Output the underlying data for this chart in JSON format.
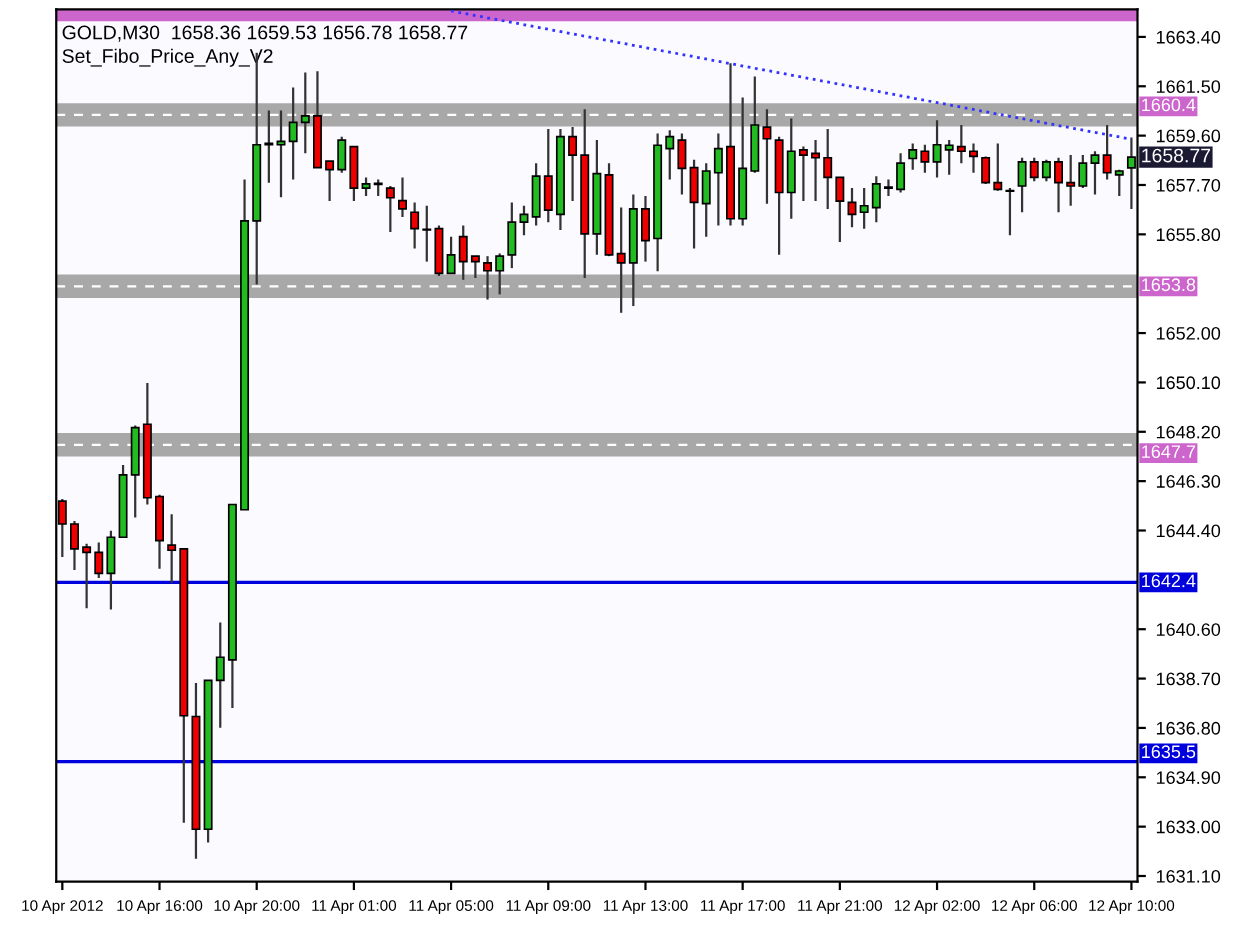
{
  "chart_data": {
    "type": "candlestick",
    "title": "GOLD,M30  1658.36 1659.53 1656.78 1658.77",
    "subtitle": "Set_Fibo_Price_Any_V2",
    "categories": [
      "10 Apr 2012",
      null,
      null,
      null,
      null,
      null,
      null,
      null,
      "10 Apr 16:00",
      null,
      null,
      null,
      null,
      null,
      null,
      null,
      "10 Apr 20:00",
      null,
      null,
      null,
      null,
      null,
      null,
      null,
      "11 Apr 01:00",
      null,
      null,
      null,
      null,
      null,
      null,
      null,
      "11 Apr 05:00",
      null,
      null,
      null,
      null,
      null,
      null,
      null,
      "11 Apr 09:00",
      null,
      null,
      null,
      null,
      null,
      null,
      null,
      "11 Apr 13:00",
      null,
      null,
      null,
      null,
      null,
      null,
      null,
      "11 Apr 17:00",
      null,
      null,
      null,
      null,
      null,
      null,
      null,
      "11 Apr 21:00",
      null,
      null,
      null,
      null,
      null,
      null,
      null,
      "12 Apr 02:00",
      null,
      null,
      null,
      null,
      null,
      null,
      null,
      "12 Apr 06:00",
      null,
      null,
      null,
      null,
      null,
      null,
      null,
      "12 Apr 10:00"
    ],
    "ohlc": [
      [
        1645.53,
        1645.61,
        1643.38,
        1644.65
      ],
      [
        1644.65,
        1644.77,
        1642.88,
        1643.69
      ],
      [
        1643.76,
        1643.89,
        1641.41,
        1643.56
      ],
      [
        1643.56,
        1643.94,
        1642.57,
        1642.75
      ],
      [
        1642.75,
        1644.39,
        1641.36,
        1644.14
      ],
      [
        1644.14,
        1646.92,
        1644.14,
        1646.54
      ],
      [
        1646.54,
        1648.44,
        1644.9,
        1648.36
      ],
      [
        1648.49,
        1650.08,
        1645.4,
        1645.66
      ],
      [
        1645.71,
        1645.78,
        1642.93,
        1644.01
      ],
      [
        1643.84,
        1645.03,
        1642.37,
        1643.64
      ],
      [
        1643.69,
        1643.69,
        1633.15,
        1637.27
      ],
      [
        1637.24,
        1638.53,
        1631.76,
        1632.9
      ],
      [
        1632.9,
        1638.63,
        1632.39,
        1638.63
      ],
      [
        1638.63,
        1640.86,
        1636.81,
        1639.52
      ],
      [
        1639.42,
        1645.4,
        1637.57,
        1645.4
      ],
      [
        1645.2,
        1657.91,
        1645.2,
        1656.32
      ],
      [
        1656.32,
        1662.79,
        1653.87,
        1659.25
      ],
      [
        1659.25,
        1660.57,
        1657.79,
        1659.3
      ],
      [
        1659.25,
        1660.57,
        1657.23,
        1659.38
      ],
      [
        1659.38,
        1661.45,
        1657.91,
        1660.11
      ],
      [
        1660.11,
        1662.03,
        1658.92,
        1660.36
      ],
      [
        1660.36,
        1662.08,
        1658.37,
        1658.37
      ],
      [
        1658.62,
        1658.62,
        1657.08,
        1658.29
      ],
      [
        1658.29,
        1659.56,
        1658.17,
        1659.43
      ],
      [
        1659.18,
        1659.18,
        1657.08,
        1657.58
      ],
      [
        1657.58,
        1657.99,
        1657.28,
        1657.74
      ],
      [
        1657.72,
        1657.91,
        1657.28,
        1657.76
      ],
      [
        1657.58,
        1657.66,
        1655.89,
        1657.21
      ],
      [
        1657.1,
        1657.99,
        1656.47,
        1656.78
      ],
      [
        1656.65,
        1657.03,
        1655.26,
        1656.02
      ],
      [
        1655.97,
        1656.9,
        1654.75,
        1655.99
      ],
      [
        1656.02,
        1656.14,
        1654.2,
        1654.3
      ],
      [
        1654.3,
        1655.71,
        1654.3,
        1655.01
      ],
      [
        1655.71,
        1656.14,
        1654.05,
        1654.75
      ],
      [
        1654.96,
        1654.96,
        1654.12,
        1654.75
      ],
      [
        1654.7,
        1654.96,
        1653.29,
        1654.4
      ],
      [
        1654.4,
        1655.06,
        1653.49,
        1654.96
      ],
      [
        1655.01,
        1657.03,
        1654.5,
        1656.27
      ],
      [
        1656.27,
        1656.9,
        1655.77,
        1656.57
      ],
      [
        1656.47,
        1658.54,
        1656.14,
        1658.04
      ],
      [
        1658.04,
        1659.86,
        1656.27,
        1656.73
      ],
      [
        1656.57,
        1659.86,
        1655.97,
        1659.56
      ],
      [
        1659.56,
        1659.93,
        1657.08,
        1658.85
      ],
      [
        1658.85,
        1660.62,
        1654.12,
        1655.82
      ],
      [
        1655.82,
        1659.43,
        1655.01,
        1658.14
      ],
      [
        1658.09,
        1658.54,
        1654.96,
        1655.01
      ],
      [
        1655.06,
        1656.83,
        1652.78,
        1654.7
      ],
      [
        1654.7,
        1657.33,
        1653.04,
        1656.78
      ],
      [
        1656.78,
        1657.28,
        1654.75,
        1655.56
      ],
      [
        1655.64,
        1659.68,
        1654.38,
        1659.23
      ],
      [
        1659.1,
        1659.81,
        1657.91,
        1659.56
      ],
      [
        1659.43,
        1659.68,
        1657.33,
        1658.34
      ],
      [
        1658.37,
        1658.67,
        1655.26,
        1657.03
      ],
      [
        1656.98,
        1658.54,
        1655.71,
        1658.24
      ],
      [
        1658.17,
        1659.68,
        1656.14,
        1659.1
      ],
      [
        1659.18,
        1662.39,
        1656.14,
        1656.4
      ],
      [
        1656.4,
        1661.07,
        1656.14,
        1658.34
      ],
      [
        1658.24,
        1661.88,
        1658.17,
        1660.01
      ],
      [
        1659.93,
        1660.62,
        1656.98,
        1659.48
      ],
      [
        1659.43,
        1659.56,
        1655.01,
        1657.41
      ],
      [
        1657.41,
        1660.26,
        1656.4,
        1659.0
      ],
      [
        1659.05,
        1659.18,
        1657.08,
        1658.85
      ],
      [
        1658.92,
        1659.43,
        1657.08,
        1658.75
      ],
      [
        1658.75,
        1659.86,
        1656.78,
        1657.99
      ],
      [
        1657.99,
        1657.99,
        1655.51,
        1657.08
      ],
      [
        1657.03,
        1657.58,
        1656.07,
        1656.57
      ],
      [
        1656.65,
        1657.58,
        1656.02,
        1656.9
      ],
      [
        1656.83,
        1658.04,
        1656.27,
        1657.74
      ],
      [
        1657.58,
        1657.91,
        1657.28,
        1657.62
      ],
      [
        1657.53,
        1658.92,
        1657.41,
        1658.54
      ],
      [
        1658.72,
        1659.3,
        1658.29,
        1659.05
      ],
      [
        1659.0,
        1659.25,
        1658.17,
        1658.59
      ],
      [
        1658.59,
        1660.19,
        1657.99,
        1659.25
      ],
      [
        1659.05,
        1659.43,
        1658.09,
        1659.23
      ],
      [
        1659.18,
        1660.01,
        1658.54,
        1659.0
      ],
      [
        1659.0,
        1659.3,
        1658.17,
        1658.8
      ],
      [
        1658.75,
        1658.8,
        1657.74,
        1657.79
      ],
      [
        1657.79,
        1659.3,
        1657.48,
        1657.53
      ],
      [
        1657.48,
        1657.58,
        1655.77,
        1657.46
      ],
      [
        1657.66,
        1658.75,
        1656.65,
        1658.59
      ],
      [
        1658.59,
        1658.75,
        1657.84,
        1657.99
      ],
      [
        1657.99,
        1658.67,
        1657.84,
        1658.59
      ],
      [
        1658.59,
        1658.75,
        1656.65,
        1657.79
      ],
      [
        1657.79,
        1658.85,
        1656.9,
        1657.66
      ],
      [
        1657.66,
        1658.85,
        1657.58,
        1658.54
      ],
      [
        1658.54,
        1659.0,
        1657.33,
        1658.85
      ],
      [
        1658.85,
        1660.01,
        1657.91,
        1658.17
      ],
      [
        1658.09,
        1658.29,
        1657.28,
        1658.24
      ],
      [
        1658.36,
        1659.53,
        1656.78,
        1658.77
      ]
    ],
    "series": [
      {
        "type": "line",
        "x": [
          "11 Apr 05:00",
          "12 Apr 10:00"
        ],
        "values": [
          1664.4,
          1659.46
        ],
        "color": "#3333ff",
        "line_style": "dotted"
      }
    ],
    "ylim": [
      1630.88,
      1664.46
    ],
    "yticks": [
      {
        "value": 1663.4,
        "label": "1663.40"
      },
      {
        "value": 1661.5,
        "label": "1661.50"
      },
      {
        "value": 1659.6,
        "label": "1659.60"
      },
      {
        "value": 1657.7,
        "label": "1657.70"
      },
      {
        "value": 1655.8,
        "label": "1655.80"
      },
      {
        "value": 1652.0,
        "label": "1652.00"
      },
      {
        "value": 1650.1,
        "label": "1650.10"
      },
      {
        "value": 1648.2,
        "label": "1648.20"
      },
      {
        "value": 1646.3,
        "label": "1646.30"
      },
      {
        "value": 1644.4,
        "label": "1644.40"
      },
      {
        "value": 1640.6,
        "label": "1640.60"
      },
      {
        "value": 1638.7,
        "label": "1638.70"
      },
      {
        "value": 1636.8,
        "label": "1636.80"
      },
      {
        "value": 1634.9,
        "label": "1634.90"
      },
      {
        "value": 1633.0,
        "label": "1633.00"
      },
      {
        "value": 1631.1,
        "label": "1631.10"
      }
    ],
    "ref_lines": [
      {
        "axis": "y",
        "value": 1642.4,
        "label": "1642.4",
        "color": "#0000dd",
        "line_style": "solid"
      },
      {
        "axis": "y",
        "value": 1635.5,
        "label": "1635.5",
        "color": "#0000dd",
        "line_style": "solid"
      }
    ],
    "bands": [
      {
        "axis": "y",
        "from": 1659.95,
        "to": 1660.85,
        "label": "1660.4",
        "color": "#a8a8a8"
      },
      {
        "axis": "y",
        "from": 1653.35,
        "to": 1654.25,
        "label": "1653.8",
        "color": "#a8a8a8"
      },
      {
        "axis": "y",
        "from": 1647.25,
        "to": 1648.15,
        "label": "1647.7",
        "color": "#a8a8a8"
      },
      {
        "axis": "y",
        "from": 1664.0,
        "to": 1664.46,
        "color": "#cc66cc"
      }
    ],
    "annotations": [
      "1658.77"
    ],
    "grid": false,
    "legend": false
  }
}
